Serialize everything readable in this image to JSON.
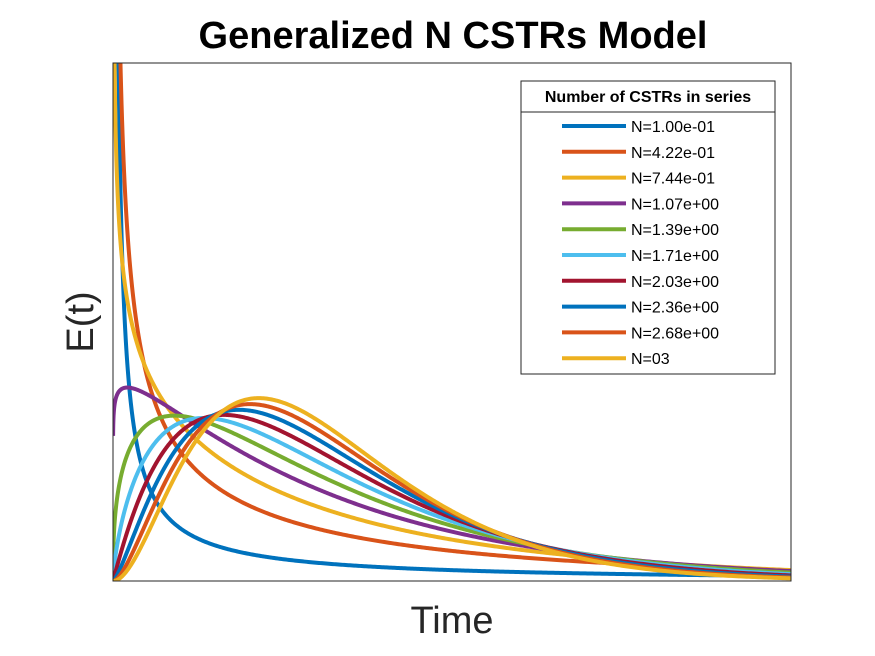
{
  "chart_data": {
    "type": "line",
    "title": "Generalized N CSTRs Model",
    "xlabel": "Time",
    "ylabel": "E(t)",
    "x_ticks_shown": false,
    "y_ticks_shown": false,
    "grid": false,
    "legend": {
      "title": "Number of CSTRs in series",
      "placement": "top-right"
    },
    "series": [
      {
        "name": "N=1.00e-01",
        "N": 0.1,
        "color": "#0072BD"
      },
      {
        "name": "N=4.22e-01",
        "N": 0.422,
        "color": "#D95319"
      },
      {
        "name": "N=7.44e-01",
        "N": 0.744,
        "color": "#EDB120"
      },
      {
        "name": "N=1.07e+00",
        "N": 1.07,
        "color": "#7E2F8E"
      },
      {
        "name": "N=1.39e+00",
        "N": 1.39,
        "color": "#77AC30"
      },
      {
        "name": "N=1.71e+00",
        "N": 1.71,
        "color": "#4DBEEE"
      },
      {
        "name": "N=2.03e+00",
        "N": 2.03,
        "color": "#A2142F"
      },
      {
        "name": "N=2.36e+00",
        "N": 2.36,
        "color": "#0072BD"
      },
      {
        "name": "N=2.68e+00",
        "N": 2.68,
        "color": "#D95319"
      },
      {
        "name": "N=03",
        "N": 3,
        "color": "#EDB120"
      }
    ]
  }
}
